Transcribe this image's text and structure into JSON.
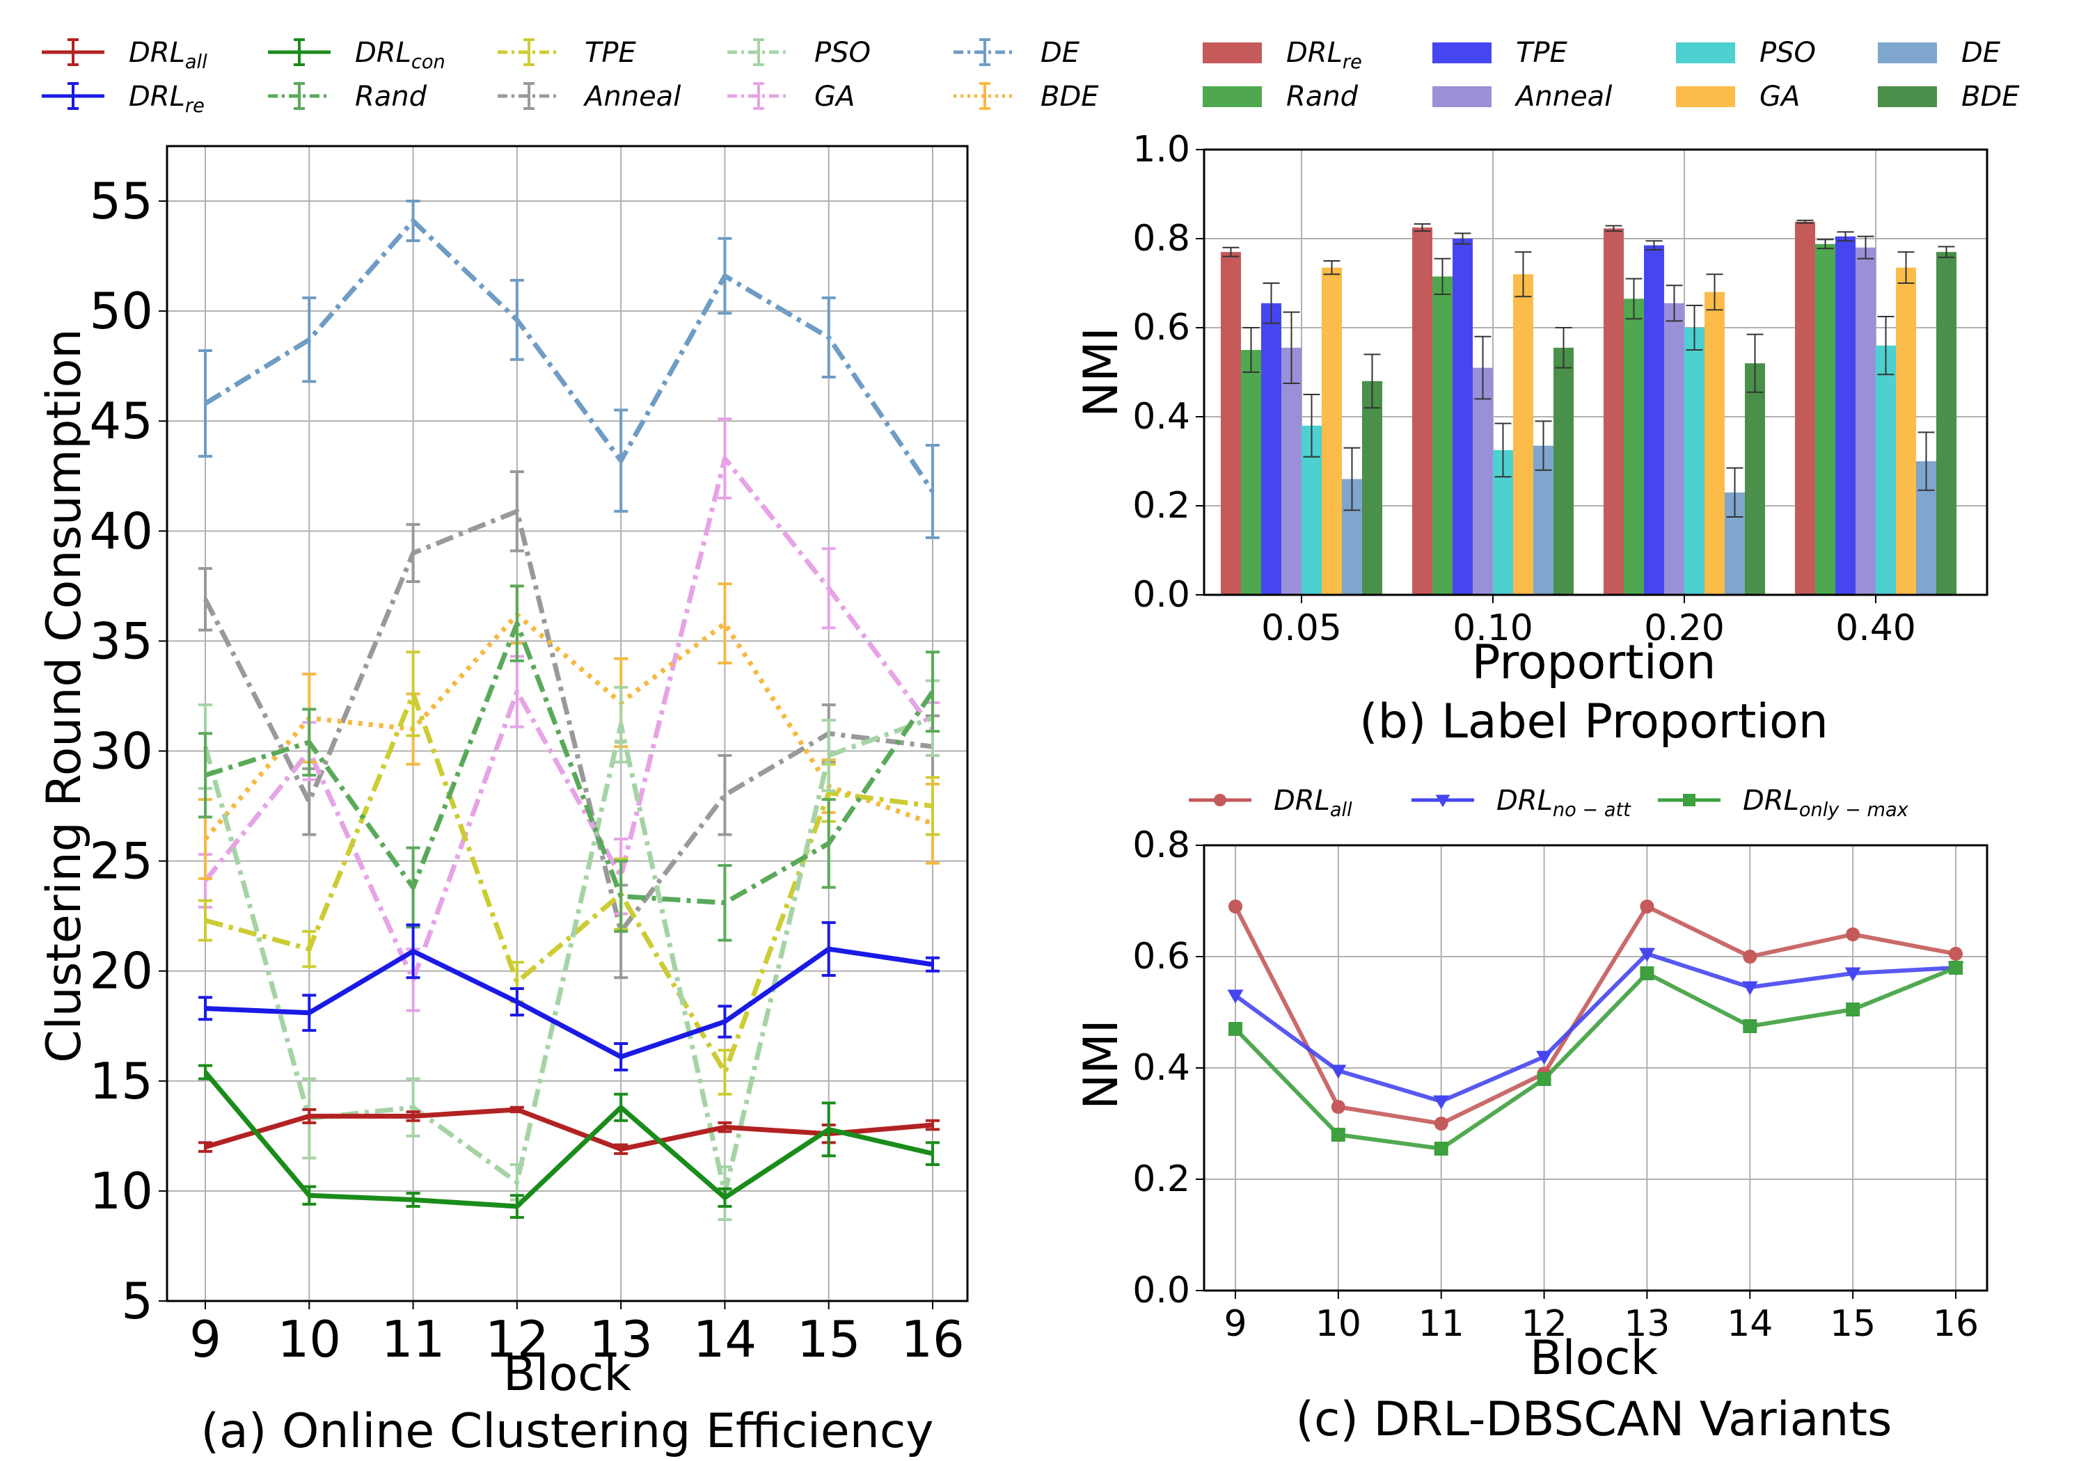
{
  "legend_a": {
    "entries": [
      {
        "base": "DRL",
        "sub": "all",
        "color": "#b22222",
        "dash": "solid"
      },
      {
        "base": "DRL",
        "sub": "re",
        "color": "#1a1ae6",
        "dash": "solid"
      },
      {
        "base": "DRL",
        "sub": "con",
        "color": "#1a8c1a",
        "dash": "solid"
      },
      {
        "base": "Rand",
        "sub": "",
        "color": "#5aa95a",
        "dash": "dashdot"
      },
      {
        "base": "TPE",
        "sub": "",
        "color": "#cccc33",
        "dash": "dashdot"
      },
      {
        "base": "Anneal",
        "sub": "",
        "color": "#999999",
        "dash": "dashdot"
      },
      {
        "base": "PSO",
        "sub": "",
        "color": "#a5d3a5",
        "dash": "dashdot"
      },
      {
        "base": "GA",
        "sub": "",
        "color": "#e6a3e6",
        "dash": "dashdot"
      },
      {
        "base": "DE",
        "sub": "",
        "color": "#6e9cc4",
        "dash": "dashdot"
      },
      {
        "base": "BDE",
        "sub": "",
        "color": "#f5b942",
        "dash": "dotted"
      }
    ]
  },
  "legend_b": {
    "entries": [
      {
        "base": "DRL",
        "sub": "re",
        "color": "#c45a5a"
      },
      {
        "base": "Rand",
        "sub": "",
        "color": "#4fa84f"
      },
      {
        "base": "TPE",
        "sub": "",
        "color": "#4646f0"
      },
      {
        "base": "Anneal",
        "sub": "",
        "color": "#9a90d8"
      },
      {
        "base": "PSO",
        "sub": "",
        "color": "#4dd0d0"
      },
      {
        "base": "GA",
        "sub": "",
        "color": "#fbbc4a"
      },
      {
        "base": "DE",
        "sub": "",
        "color": "#7fa6cc"
      },
      {
        "base": "BDE",
        "sub": "",
        "color": "#4a8f4a"
      }
    ]
  },
  "chart_data": [
    {
      "type": "line",
      "caption": "(a) Online Clustering Efficiency",
      "xlabel": "Block",
      "ylabel": "Clustering Round Consumption",
      "x": [
        9,
        10,
        11,
        12,
        13,
        14,
        15,
        16
      ],
      "yticks": [
        5,
        10,
        15,
        20,
        25,
        30,
        35,
        40,
        45,
        50,
        55
      ],
      "ylim": [
        5,
        57.5
      ],
      "grid": true,
      "series": [
        {
          "name": "DE",
          "values": [
            45.8,
            48.7,
            54.1,
            49.6,
            43.2,
            51.6,
            48.8,
            41.8
          ],
          "err": [
            2.4,
            1.9,
            0.9,
            1.8,
            2.3,
            1.7,
            1.8,
            2.1
          ]
        },
        {
          "name": "Anneal",
          "values": [
            36.9,
            27.7,
            39.0,
            40.9,
            21.8,
            28.0,
            30.8,
            30.2
          ],
          "err": [
            1.4,
            1.5,
            1.3,
            1.8,
            2.1,
            1.8,
            1.3,
            1.4
          ]
        },
        {
          "name": "GA",
          "values": [
            24.1,
            30.0,
            19.6,
            32.7,
            24.3,
            43.3,
            37.4,
            31.0
          ],
          "err": [
            1.2,
            1.3,
            1.4,
            1.6,
            1.7,
            1.8,
            1.8,
            1.2
          ]
        },
        {
          "name": "BDE",
          "values": [
            26.0,
            31.5,
            31.0,
            36.2,
            32.2,
            35.8,
            28.4,
            26.7
          ],
          "err": [
            1.8,
            2.0,
            1.6,
            1.3,
            2.0,
            1.8,
            1.2,
            1.8
          ]
        },
        {
          "name": "TPE",
          "values": [
            22.3,
            21.0,
            32.6,
            19.5,
            23.5,
            15.4,
            28.1,
            27.5
          ],
          "err": [
            0.9,
            0.8,
            1.9,
            0.9,
            1.6,
            1.0,
            1.3,
            1.3
          ]
        },
        {
          "name": "PSO",
          "values": [
            30.2,
            13.3,
            13.8,
            10.4,
            31.2,
            9.9,
            29.8,
            31.5
          ],
          "err": [
            1.9,
            1.8,
            1.3,
            0.8,
            1.7,
            1.2,
            1.6,
            1.7
          ]
        },
        {
          "name": "Rand",
          "values": [
            28.9,
            30.4,
            23.8,
            35.8,
            23.4,
            23.1,
            25.8,
            32.7
          ],
          "err": [
            1.9,
            1.5,
            1.8,
            1.7,
            1.6,
            1.7,
            2.0,
            1.8
          ]
        },
        {
          "name": "DRL_re",
          "values": [
            18.3,
            18.1,
            20.9,
            18.6,
            16.1,
            17.7,
            21.0,
            20.3
          ],
          "err": [
            0.5,
            0.8,
            1.2,
            0.6,
            0.6,
            0.7,
            1.2,
            0.3
          ]
        },
        {
          "name": "DRL_all",
          "values": [
            12.0,
            13.4,
            13.4,
            13.7,
            11.9,
            12.9,
            12.6,
            13.0
          ],
          "err": [
            0.2,
            0.3,
            0.2,
            0.1,
            0.2,
            0.2,
            0.4,
            0.2
          ]
        },
        {
          "name": "DRL_con",
          "values": [
            15.4,
            9.8,
            9.6,
            9.3,
            13.8,
            9.7,
            12.8,
            11.7
          ],
          "err": [
            0.3,
            0.4,
            0.3,
            0.5,
            0.6,
            0.4,
            1.2,
            0.5
          ]
        }
      ]
    },
    {
      "type": "bar",
      "caption": "(b) Label Proportion",
      "xlabel": "Proportion",
      "ylabel": "NMI",
      "categories": [
        "0.05",
        "0.10",
        "0.20",
        "0.40"
      ],
      "yticks": [
        "0.0",
        "0.2",
        "0.4",
        "0.6",
        "0.8",
        "1.0"
      ],
      "ylim": [
        0,
        1.0
      ],
      "grid": true,
      "series": [
        {
          "name": "DRL_re",
          "values": [
            0.77,
            0.825,
            0.823,
            0.838
          ],
          "err": [
            0.01,
            0.008,
            0.006,
            0.003
          ]
        },
        {
          "name": "Rand",
          "values": [
            0.55,
            0.715,
            0.665,
            0.788
          ],
          "err": [
            0.05,
            0.04,
            0.045,
            0.01
          ]
        },
        {
          "name": "TPE",
          "values": [
            0.655,
            0.8,
            0.785,
            0.805
          ],
          "err": [
            0.045,
            0.012,
            0.01,
            0.01
          ]
        },
        {
          "name": "Anneal",
          "values": [
            0.555,
            0.51,
            0.655,
            0.78
          ],
          "err": [
            0.08,
            0.07,
            0.04,
            0.025
          ]
        },
        {
          "name": "PSO",
          "values": [
            0.38,
            0.325,
            0.6,
            0.56
          ],
          "err": [
            0.07,
            0.06,
            0.05,
            0.065
          ]
        },
        {
          "name": "GA",
          "values": [
            0.735,
            0.72,
            0.68,
            0.735
          ],
          "err": [
            0.015,
            0.05,
            0.04,
            0.035
          ]
        },
        {
          "name": "DE",
          "values": [
            0.26,
            0.335,
            0.23,
            0.3
          ],
          "err": [
            0.07,
            0.055,
            0.055,
            0.065
          ]
        },
        {
          "name": "BDE",
          "values": [
            0.48,
            0.555,
            0.52,
            0.77
          ],
          "err": [
            0.06,
            0.045,
            0.065,
            0.012
          ]
        }
      ]
    },
    {
      "type": "line",
      "caption": "(c) DRL-DBSCAN Variants",
      "xlabel": "Block",
      "ylabel": "NMI",
      "x": [
        9,
        10,
        11,
        12,
        13,
        14,
        15,
        16
      ],
      "yticks": [
        "0.0",
        "0.2",
        "0.4",
        "0.6",
        "0.8"
      ],
      "ylim": [
        0,
        0.8
      ],
      "grid": true,
      "series": [
        {
          "name": "DRL_all",
          "label_base": "DRL",
          "label_sub": "all",
          "marker": "circle",
          "color": "#c45a5a",
          "values": [
            0.69,
            0.33,
            0.3,
            0.39,
            0.69,
            0.6,
            0.64,
            0.605
          ]
        },
        {
          "name": "DRL_no-att",
          "label_base": "DRL",
          "label_sub": "no − att",
          "marker": "triangle-down",
          "color": "#4646f0",
          "values": [
            0.53,
            0.395,
            0.34,
            0.42,
            0.605,
            0.545,
            0.57,
            0.58
          ]
        },
        {
          "name": "DRL_only-max",
          "label_base": "DRL",
          "label_sub": "only − max",
          "marker": "square",
          "color": "#3ea03e",
          "values": [
            0.47,
            0.28,
            0.255,
            0.38,
            0.57,
            0.475,
            0.505,
            0.58
          ]
        }
      ]
    }
  ],
  "colors": {
    "DRL_all": "#b22222",
    "DRL_re": "#1a1ae6",
    "DRL_con": "#1a8c1a",
    "Rand": "#5aa95a",
    "TPE": "#cccc33",
    "Anneal": "#999999",
    "PSO": "#a5d3a5",
    "GA": "#e6a3e6",
    "DE": "#6e9cc4",
    "BDE": "#f5b942"
  }
}
